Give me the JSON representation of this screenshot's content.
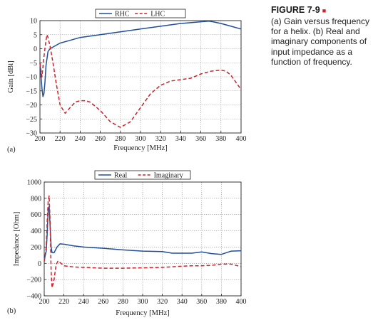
{
  "caption": {
    "heading": "FIGURE 7-9",
    "text": "(a) Gain versus frequency for a helix. (b) Real and imaginary components of input impedance as a function of frequency."
  },
  "chart_data": [
    {
      "type": "line",
      "panel_label": "(a)",
      "xlabel": "Frequency [MHz]",
      "ylabel": "Gain [dBi]",
      "xlim": [
        200,
        400
      ],
      "ylim": [
        -30,
        10
      ],
      "xticks": [
        200,
        220,
        240,
        260,
        280,
        300,
        320,
        340,
        360,
        380,
        400
      ],
      "yticks": [
        10,
        5,
        0,
        -5,
        -10,
        -15,
        -20,
        -25,
        -30
      ],
      "grid": true,
      "legend_position": "top-center",
      "series": [
        {
          "name": "RHC",
          "color": "#1f4e9c",
          "dash": "solid",
          "x": [
            200,
            202,
            203,
            204,
            205,
            206,
            208,
            210,
            215,
            220,
            230,
            240,
            260,
            280,
            300,
            320,
            340,
            360,
            368,
            372,
            380,
            390,
            400
          ],
          "y": [
            -5,
            -14,
            -17,
            -16,
            -12,
            -6,
            -1,
            0,
            1,
            2,
            3,
            4,
            5,
            6,
            7,
            8,
            9,
            9.6,
            9.8,
            9.6,
            9,
            8,
            7
          ]
        },
        {
          "name": "LHC",
          "color": "#d0202a",
          "dash": "dashed",
          "x": [
            200,
            202,
            204,
            205,
            206,
            207,
            208,
            210,
            213,
            216,
            220,
            225,
            230,
            235,
            240,
            245,
            250,
            260,
            270,
            280,
            290,
            300,
            310,
            320,
            330,
            340,
            350,
            360,
            370,
            380,
            385,
            390,
            395,
            400
          ],
          "y": [
            -5,
            -10,
            -3,
            0,
            3,
            5,
            4,
            1,
            -5,
            -12,
            -20,
            -23,
            -21,
            -19,
            -18.5,
            -18.5,
            -19,
            -22,
            -26,
            -28,
            -26,
            -21,
            -16,
            -13,
            -11.5,
            -11,
            -10.5,
            -9,
            -8,
            -7.6,
            -8,
            -9.5,
            -12,
            -14.5
          ]
        }
      ]
    },
    {
      "type": "line",
      "panel_label": "(b)",
      "xlabel": "Frequency [MHz]",
      "ylabel": "Impedance [Ohm]",
      "xlim": [
        200,
        400
      ],
      "ylim": [
        -400,
        1000
      ],
      "xticks": [
        200,
        220,
        240,
        260,
        280,
        300,
        320,
        340,
        360,
        380,
        400
      ],
      "yticks": [
        1000,
        800,
        600,
        400,
        200,
        0,
        -200,
        -400
      ],
      "grid": true,
      "legend_position": "top-center",
      "series": [
        {
          "name": "Real",
          "color": "#1f4e9c",
          "dash": "solid",
          "x": [
            200,
            202,
            203,
            204,
            205,
            206,
            207,
            208,
            210,
            213,
            216,
            220,
            230,
            240,
            260,
            280,
            300,
            320,
            330,
            340,
            350,
            360,
            370,
            380,
            390,
            400
          ],
          "y": [
            40,
            150,
            350,
            650,
            700,
            450,
            200,
            130,
            130,
            200,
            240,
            235,
            215,
            200,
            185,
            165,
            150,
            145,
            125,
            125,
            125,
            140,
            120,
            110,
            150,
            155
          ]
        },
        {
          "name": "Imaginary",
          "color": "#d0202a",
          "dash": "dashed",
          "x": [
            200,
            202,
            203,
            204,
            205,
            206,
            207,
            208,
            210,
            212,
            214,
            216,
            220,
            230,
            240,
            260,
            280,
            300,
            320,
            340,
            350,
            360,
            370,
            380,
            390,
            400
          ],
          "y": [
            20,
            200,
            500,
            760,
            830,
            500,
            -100,
            -300,
            -200,
            -20,
            30,
            10,
            -30,
            -45,
            -50,
            -60,
            -60,
            -55,
            -50,
            -35,
            -30,
            -30,
            -25,
            -10,
            -10,
            -40
          ]
        }
      ]
    }
  ]
}
